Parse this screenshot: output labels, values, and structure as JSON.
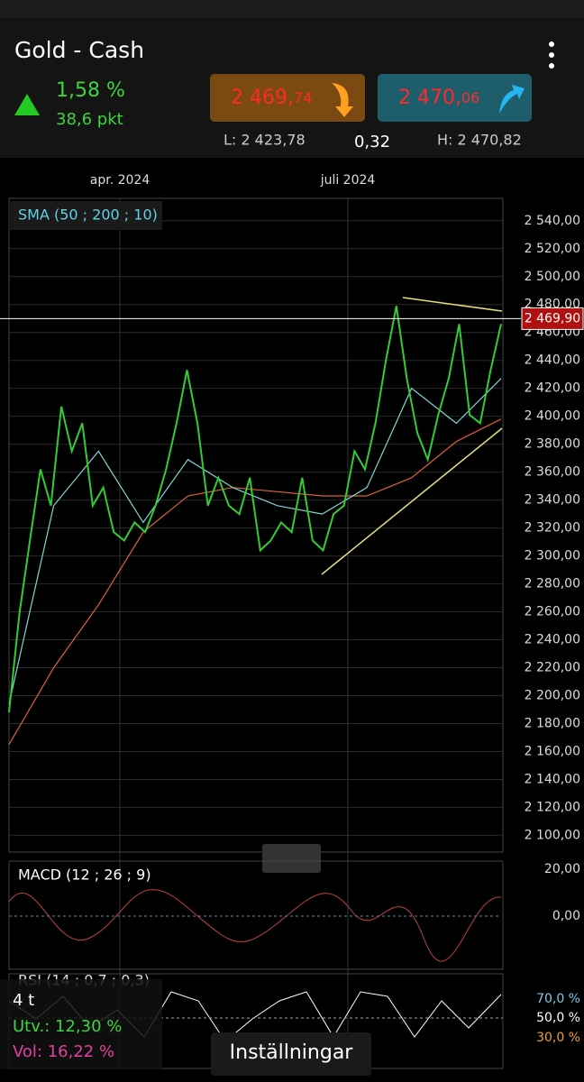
{
  "header": {
    "title": "Gold - Cash",
    "change_pct": "1,58 %",
    "change_pts": "38,6 pkt",
    "sell": {
      "main": "2 469,",
      "decimals": "74"
    },
    "buy": {
      "main": "2 470,",
      "decimals": "06"
    },
    "low": "L: 2 423,78",
    "spread": "0,32",
    "high": "H: 2 470,82"
  },
  "chart_data": {
    "type": "line",
    "indicator": "SMA (50 ; 200 ; 10)",
    "x_labels": [
      "apr. 2024",
      "juli 2024"
    ],
    "ylim": [
      2088,
      2556
    ],
    "yticks": [
      {
        "value": 2100,
        "label": "2 100,00"
      },
      {
        "value": 2120,
        "label": "2 120,00"
      },
      {
        "value": 2140,
        "label": "2 140,00"
      },
      {
        "value": 2160,
        "label": "2 160,00"
      },
      {
        "value": 2180,
        "label": "2 180,00"
      },
      {
        "value": 2200,
        "label": "2 200,00"
      },
      {
        "value": 2220,
        "label": "2 220,00"
      },
      {
        "value": 2240,
        "label": "2 240,00"
      },
      {
        "value": 2260,
        "label": "2 260,00"
      },
      {
        "value": 2280,
        "label": "2 280,00"
      },
      {
        "value": 2300,
        "label": "2 300,00"
      },
      {
        "value": 2320,
        "label": "2 320,00"
      },
      {
        "value": 2340,
        "label": "2 340,00"
      },
      {
        "value": 2360,
        "label": "2 360,00"
      },
      {
        "value": 2380,
        "label": "2 380,00"
      },
      {
        "value": 2400,
        "label": "2 400,00"
      },
      {
        "value": 2420,
        "label": "2 420,00"
      },
      {
        "value": 2440,
        "label": "2 440,00"
      },
      {
        "value": 2460,
        "label": "2 460,00"
      },
      {
        "value": 2480,
        "label": "2 480,00"
      },
      {
        "value": 2500,
        "label": "2 500,00"
      },
      {
        "value": 2520,
        "label": "2 520,00"
      },
      {
        "value": 2540,
        "label": "2 540,00"
      }
    ],
    "last_price": {
      "value": 2469.9,
      "label": "2 469,90"
    },
    "series": [
      {
        "color": "#33cc33",
        "values": [
          2188,
          2259,
          2311,
          2362,
          2336,
          2407,
          2375,
          2395,
          2336,
          2349,
          2317,
          2311,
          2324,
          2317,
          2336,
          2362,
          2395,
          2433,
          2395,
          2336,
          2356,
          2336,
          2330,
          2356,
          2304,
          2311,
          2324,
          2317,
          2356,
          2311,
          2304,
          2330,
          2336,
          2375,
          2362,
          2395,
          2440,
          2479,
          2427,
          2388,
          2369,
          2401,
          2427,
          2466,
          2401,
          2395,
          2433,
          2466
        ]
      },
      {
        "color": "#7fd6d6",
        "values": [
          2194,
          2336,
          2375,
          2324,
          2369,
          2349,
          2336,
          2330,
          2349,
          2420,
          2395,
          2427
        ]
      },
      {
        "color": "#e0603a",
        "values": [
          2165,
          2220,
          2265,
          2317,
          2343,
          2349,
          2346,
          2343,
          2343,
          2356,
          2382,
          2398
        ]
      }
    ]
  },
  "macd": {
    "label": "MACD (12 ; 26 ; 9)",
    "ticks": [
      "20,00",
      "0,00"
    ]
  },
  "rsi": {
    "label": "RSI (14 ; 0,7 ; 0,3)",
    "ticks": [
      "70,0 %",
      "50,0 %",
      "30,0 %"
    ]
  },
  "overlay": {
    "period": "4 t",
    "change": "Utv.: 12,30 %",
    "volatility": "Vol: 16,22 %",
    "settings": "Inställningar"
  }
}
